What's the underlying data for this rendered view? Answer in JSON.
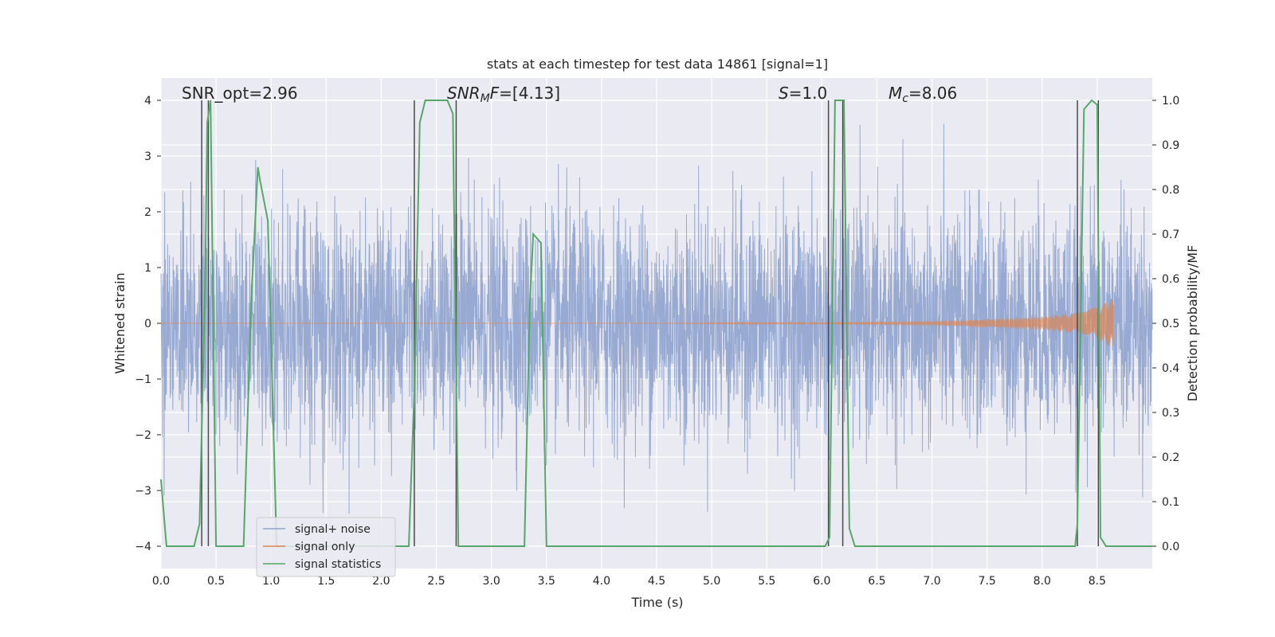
{
  "chart_data": {
    "type": "line",
    "title": "stats at each timestep for test data 14861 [signal=1]",
    "xlabel": "Time (s)",
    "ylabel": "Whitened strain",
    "ylabel_right": "Detection probability/MF",
    "xlim": [
      0.0,
      9.0
    ],
    "ylim": [
      -4.4,
      4.4
    ],
    "ylim_right": [
      -0.05,
      1.05
    ],
    "x_ticks": [
      "0.0",
      "0.5",
      "1.0",
      "1.5",
      "2.0",
      "2.5",
      "3.0",
      "3.5",
      "4.0",
      "4.5",
      "5.0",
      "5.5",
      "6.0",
      "6.5",
      "7.0",
      "7.5",
      "8.0",
      "8.5"
    ],
    "y_ticks": [
      "4",
      "3",
      "2",
      "1",
      "0",
      "−1",
      "−2",
      "−3",
      "−4"
    ],
    "y_ticks_right": [
      "1.0",
      "0.9",
      "0.8",
      "0.7",
      "0.6",
      "0.5",
      "0.4",
      "0.3",
      "0.2",
      "0.1",
      "0.0"
    ],
    "grid": true,
    "legend_position": "lower-left",
    "annotations": {
      "snr_opt": "SNR_opt=2.96",
      "snr_mf": "=[4.13]",
      "snr_mf_sym": "SNR",
      "snr_mf_sub": "M",
      "snr_mf_f": "F",
      "s_val": "=1.0",
      "s_sym": "S",
      "mc_val": "=8.06",
      "mc_sym": "M",
      "mc_sub": "c"
    },
    "series": [
      {
        "name": "signal+ noise",
        "color": "#8fa3cd",
        "description_range": [
          -3.8,
          3.6
        ]
      },
      {
        "name": "signal only",
        "color": "#dd8452",
        "envelope": {
          "x": [
            4.5,
            6.0,
            7.0,
            7.5,
            8.0,
            8.3,
            8.5,
            8.65
          ],
          "amp": [
            0.0,
            0.02,
            0.04,
            0.07,
            0.12,
            0.18,
            0.3,
            0.45
          ]
        }
      },
      {
        "name": "signal statistics",
        "color": "#55a868",
        "x": [
          0.0,
          0.05,
          0.3,
          0.35,
          0.4,
          0.42,
          0.45,
          0.5,
          0.75,
          0.82,
          0.88,
          0.9,
          0.97,
          1.05,
          1.1,
          2.25,
          2.3,
          2.35,
          2.4,
          2.6,
          2.65,
          2.7,
          2.73,
          2.8,
          3.3,
          3.35,
          3.38,
          3.45,
          3.5,
          6.03,
          6.07,
          6.12,
          6.15,
          6.2,
          6.25,
          6.3,
          8.3,
          8.32,
          8.38,
          8.45,
          8.5,
          8.53,
          8.58,
          9.0
        ],
        "y": [
          0.15,
          0.0,
          0.0,
          0.05,
          0.58,
          0.95,
          1.0,
          0.0,
          0.0,
          0.55,
          0.85,
          0.82,
          0.73,
          0.0,
          0.0,
          0.0,
          0.35,
          0.95,
          1.0,
          1.0,
          0.97,
          0.0,
          0.0,
          0.0,
          0.0,
          0.55,
          0.7,
          0.68,
          0.0,
          0.0,
          0.02,
          1.0,
          1.0,
          1.0,
          0.04,
          0.0,
          0.0,
          0.05,
          0.98,
          1.0,
          0.99,
          0.02,
          0.0,
          0.0
        ]
      }
    ],
    "vlines": [
      0.37,
      0.43,
      2.3,
      2.68,
      6.06,
      6.19,
      8.32,
      8.51
    ]
  }
}
